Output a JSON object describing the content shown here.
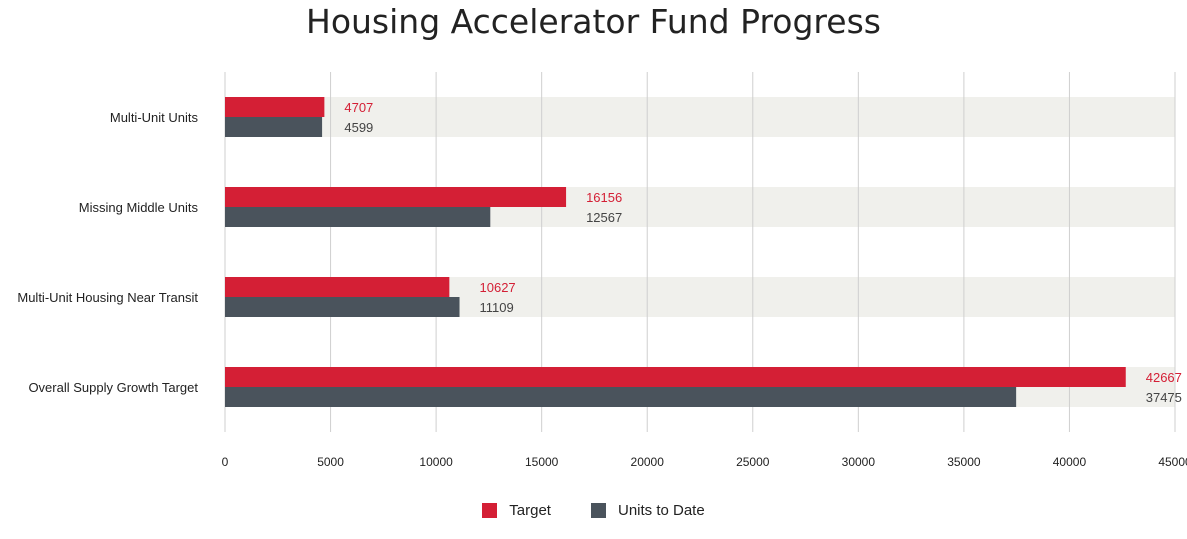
{
  "chart_data": {
    "type": "bar",
    "orientation": "horizontal",
    "title": "Housing Accelerator Fund Progress",
    "categories": [
      "Multi-Unit Units",
      "Missing Middle Units",
      "Multi-Unit Housing Near Transit",
      "Overall Supply Growth Target"
    ],
    "series": [
      {
        "name": "Target",
        "values": [
          4707,
          16156,
          10627,
          42667
        ],
        "color": "#d41f35"
      },
      {
        "name": "Units to Date",
        "values": [
          4599,
          12567,
          11109,
          37475
        ],
        "color": "#4a535c"
      }
    ],
    "xlim": [
      0,
      45000
    ],
    "xticks": [
      "0",
      "5000",
      "10000",
      "15000",
      "20000",
      "25000",
      "30000",
      "35000",
      "40000",
      "45000"
    ],
    "grid": true,
    "legend": "bottom-center"
  }
}
